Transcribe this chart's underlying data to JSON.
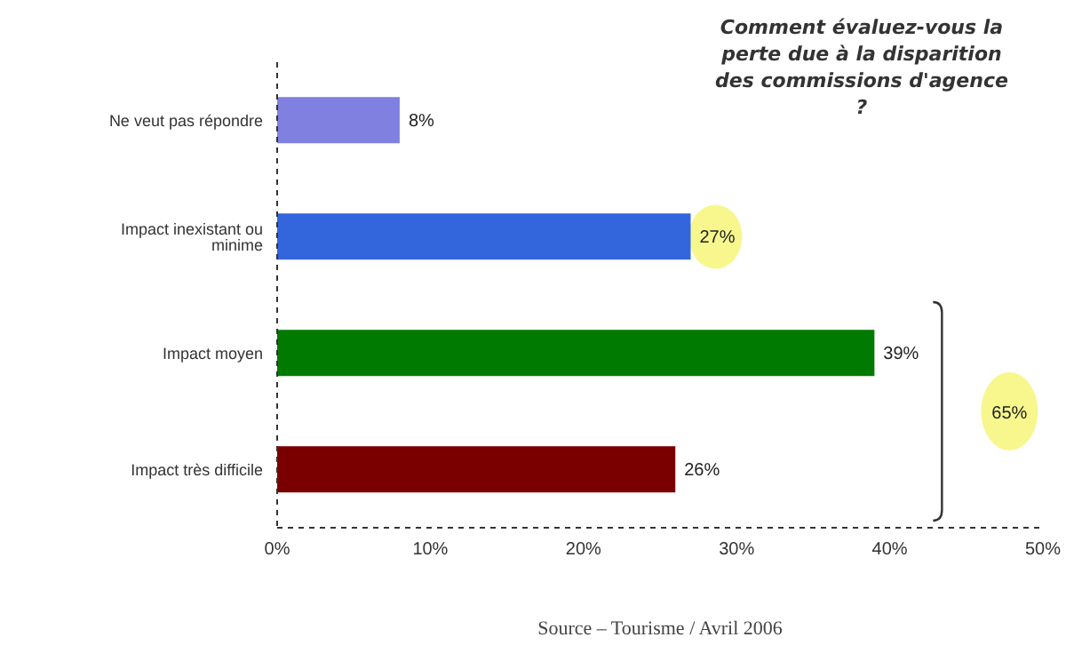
{
  "chart_data": {
    "type": "bar",
    "orientation": "horizontal",
    "title": "Comment évaluez-vous la perte due à la disparition des commissions d'agence ?",
    "categories": [
      "Ne veut pas répondre",
      "Impact inexistant ou minime",
      "Impact moyen",
      "Impact très difficile"
    ],
    "values": [
      8,
      27,
      39,
      26
    ],
    "colors": [
      "#8080e0",
      "#3366dd",
      "#007a00",
      "#7a0000"
    ],
    "value_labels": [
      "8%",
      "27%",
      "39%",
      "26%"
    ],
    "xlim": [
      0,
      50
    ],
    "xticks": [
      {
        "value": 0,
        "label": "0%"
      },
      {
        "value": 10,
        "label": "10%"
      },
      {
        "value": 20,
        "label": "20%"
      },
      {
        "value": 30,
        "label": "30%"
      },
      {
        "value": 40,
        "label": "40%"
      },
      {
        "value": 50,
        "label": "50%"
      }
    ],
    "annotations": [
      "65%",
      "Source – Tourisme / Avril 2006"
    ]
  }
}
